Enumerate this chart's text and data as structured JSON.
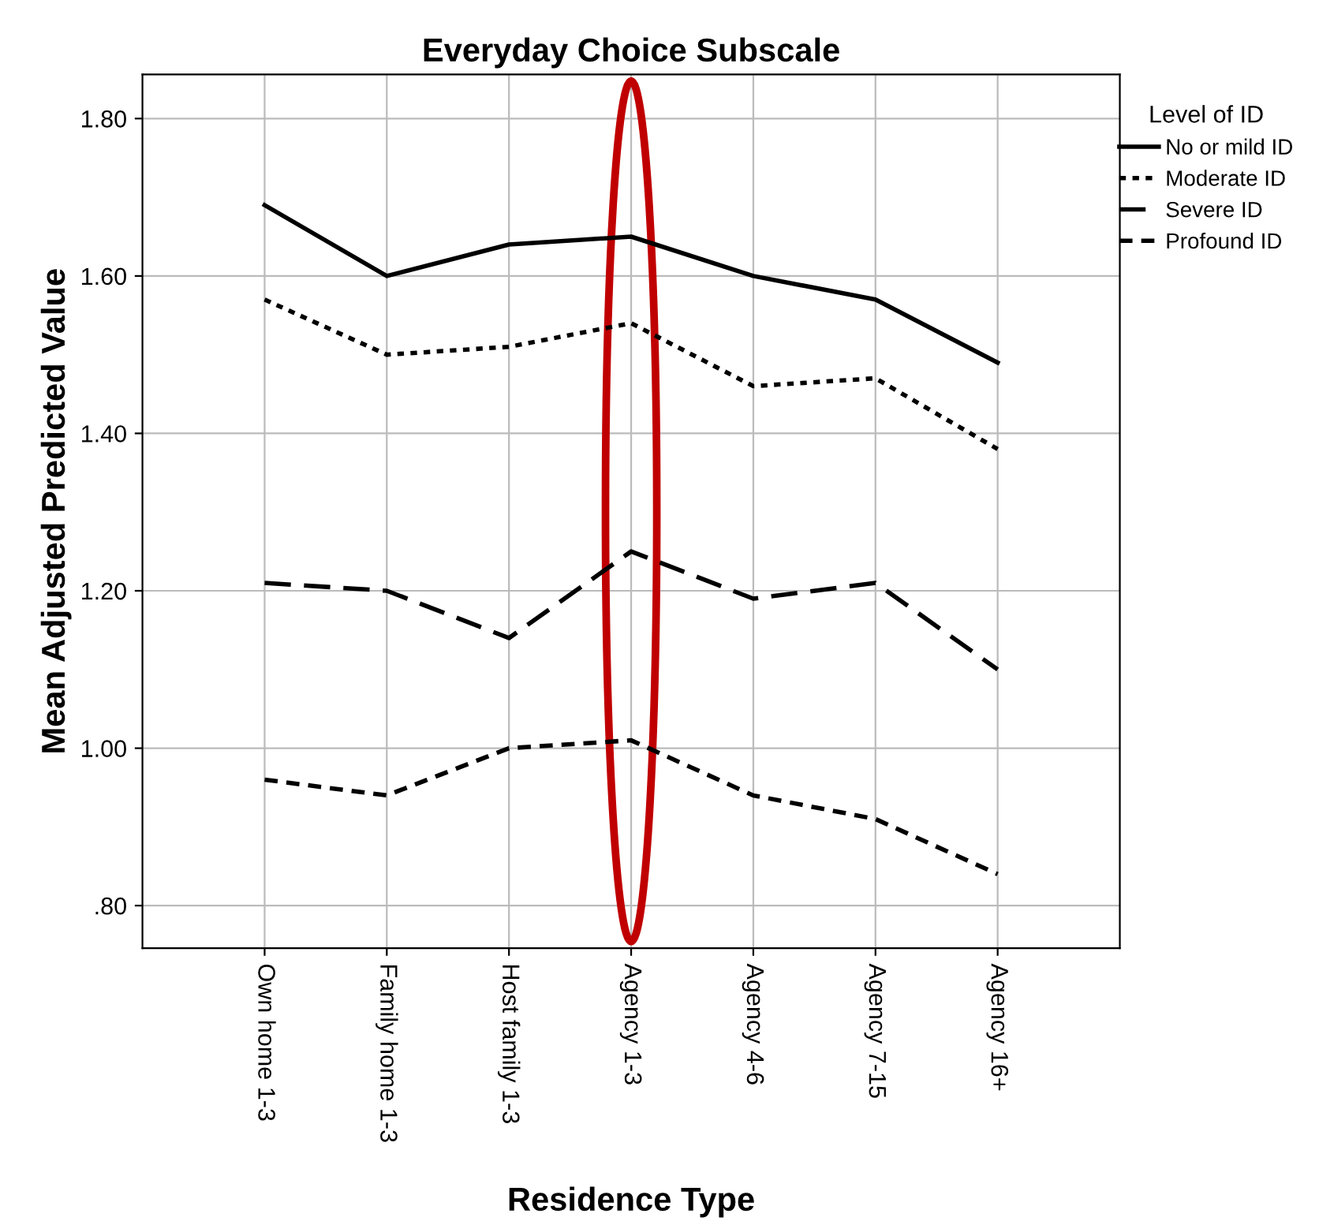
{
  "chart_data": {
    "type": "line",
    "title": "Everyday Choice Subscale",
    "xlabel": "Residence Type",
    "ylabel": "Mean Adjusted Predicted Value",
    "legend_title": "Level of ID",
    "legend": "right",
    "categories": [
      "Own home 1-3",
      "Family home 1-3",
      "Host family 1-3",
      "Agency 1-3",
      "Agency 4-6",
      "Agency 7-15",
      "Agency 16+"
    ],
    "series": [
      {
        "name": "No or mild ID",
        "color": "#000000",
        "line_style": "solid",
        "values": [
          1.69,
          1.6,
          1.64,
          1.65,
          1.6,
          1.57,
          1.49
        ]
      },
      {
        "name": "Moderate ID",
        "color": "#000000",
        "line_style": "dotted",
        "values": [
          1.57,
          1.5,
          1.51,
          1.54,
          1.46,
          1.47,
          1.38
        ]
      },
      {
        "name": "Severe ID",
        "color": "#000000",
        "line_style": "dashed",
        "values": [
          1.21,
          1.2,
          1.14,
          1.25,
          1.19,
          1.21,
          1.1
        ]
      },
      {
        "name": "Profound ID",
        "color": "#000000",
        "line_style": "short dashed",
        "values": [
          0.96,
          0.94,
          1.0,
          1.01,
          0.94,
          0.91,
          0.84
        ]
      }
    ],
    "ylim": [
      0.746,
      1.856
    ],
    "yticks": [
      {
        "value": 0.8,
        "label": ".80"
      },
      {
        "value": 1.0,
        "label": "1.00"
      },
      {
        "value": 1.2,
        "label": "1.20"
      },
      {
        "value": 1.4,
        "label": "1.40"
      },
      {
        "value": 1.6,
        "label": "1.60"
      },
      {
        "value": 1.8,
        "label": "1.80"
      }
    ],
    "grid": true
  }
}
